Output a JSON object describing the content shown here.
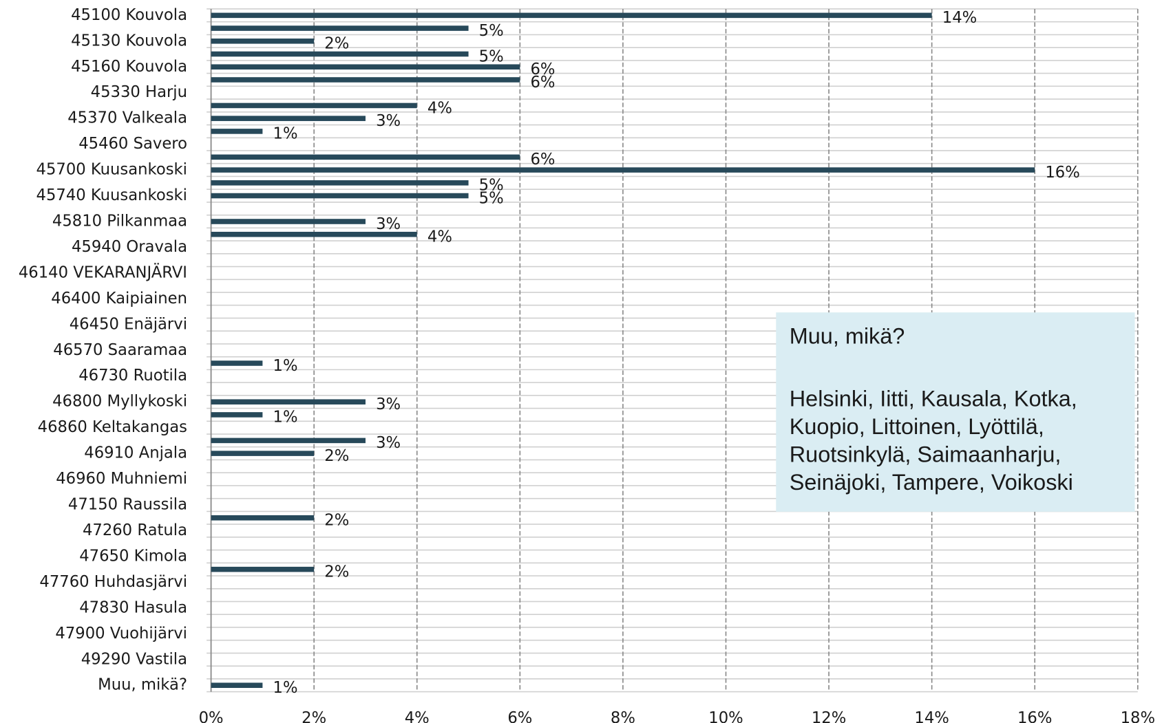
{
  "chart_data": {
    "type": "bar",
    "orientation": "horizontal",
    "color": "#27495a",
    "categories": [
      "45100 Kouvola",
      null,
      "45130 Kouvola",
      null,
      "45160 Kouvola",
      null,
      "45330 Harju",
      null,
      "45370 Valkeala",
      null,
      "45460 Savero",
      null,
      "45700 Kuusankoski",
      null,
      "45740 Kuusankoski",
      null,
      "45810 Pilkanmaa",
      null,
      "45940 Oravala",
      null,
      "46140 VEKARANJÄRVI",
      null,
      "46400 Kaipiainen",
      null,
      "46450 Enäjärvi",
      null,
      "46570 Saaramaa",
      null,
      "46730 Ruotila",
      null,
      "46800 Myllykoski",
      null,
      "46860 Keltakangas",
      null,
      "46910 Anjala",
      null,
      "46960 Muhniemi",
      null,
      "47150 Raussila",
      null,
      "47260 Ratula",
      null,
      "47650 Kimola",
      null,
      "47760 Huhdasjärvi",
      null,
      "47830 Hasula",
      null,
      "47900 Vuohijärvi",
      null,
      "49290 Vastila",
      null,
      "Muu, mikä?"
    ],
    "values": [
      14,
      5,
      2,
      5,
      6,
      6,
      null,
      4,
      3,
      1,
      null,
      6,
      16,
      5,
      5,
      null,
      3,
      4,
      null,
      null,
      null,
      null,
      null,
      null,
      null,
      null,
      null,
      1,
      null,
      null,
      3,
      1,
      null,
      3,
      2,
      null,
      null,
      null,
      null,
      2,
      null,
      null,
      null,
      2,
      null,
      null,
      null,
      null,
      null,
      null,
      null,
      null,
      1
    ],
    "value_labels": [
      "14%",
      "5%",
      "2%",
      "5%",
      "6%",
      "6%",
      null,
      "4%",
      "3%",
      "1%",
      null,
      "6%",
      "16%",
      "5%",
      "5%",
      null,
      "3%",
      "4%",
      null,
      null,
      null,
      null,
      null,
      null,
      null,
      null,
      null,
      "1%",
      null,
      null,
      "3%",
      "1%",
      null,
      "3%",
      "2%",
      null,
      null,
      null,
      null,
      "2%",
      null,
      null,
      null,
      "2%",
      null,
      null,
      null,
      null,
      null,
      null,
      null,
      null,
      "1%"
    ],
    "xlim": [
      0,
      18
    ],
    "xticks": [
      {
        "value": 0,
        "label": "0%"
      },
      {
        "value": 2,
        "label": "2%"
      },
      {
        "value": 4,
        "label": "4%"
      },
      {
        "value": 6,
        "label": "6%"
      },
      {
        "value": 8,
        "label": "8%"
      },
      {
        "value": 10,
        "label": "10%"
      },
      {
        "value": 12,
        "label": "12%"
      },
      {
        "value": 14,
        "label": "14%"
      },
      {
        "value": 16,
        "label": "16%"
      },
      {
        "value": 18,
        "label": "18%"
      }
    ],
    "grid": true,
    "annotation": {
      "title": "Muu, mikä?",
      "lines": [
        "Helsinki, Iitti, Kausala, Kotka,",
        "Kuopio, Littoinen, Lyöttilä,",
        "Ruotsinkylä, Saimaanharju,",
        "Seinäjoki, Tampere, Voikoski"
      ]
    }
  }
}
